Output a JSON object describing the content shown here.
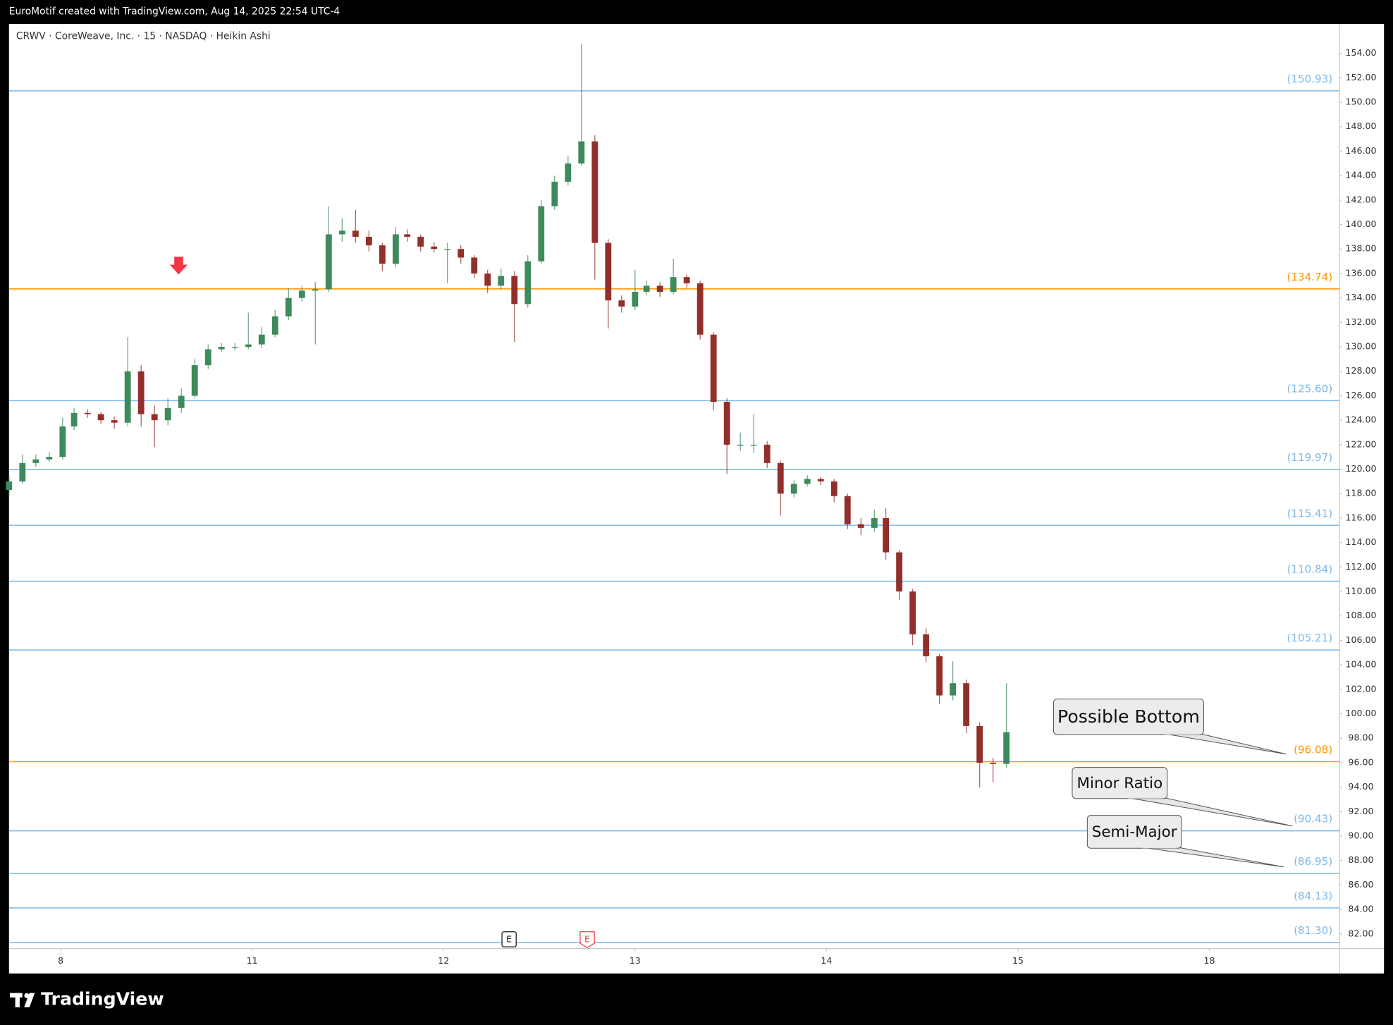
{
  "header": "EuroMotif created with TradingView.com, Aug 14, 2025 22:54 UTC-4",
  "footer_logo": "TradingView",
  "chart_data": {
    "type": "candlestick",
    "title": "CRWV · CoreWeave, Inc. · 15 · NASDAQ · Heikin Ashi",
    "up_color": "#3d8a5c",
    "down_color": "#922f2a",
    "x": [
      -0.27,
      -0.2,
      -0.13,
      -0.06,
      0.01,
      0.07,
      0.14,
      0.21,
      0.28,
      0.35,
      0.42,
      0.49,
      0.56,
      0.63,
      0.7,
      0.77,
      0.84,
      0.91,
      0.98,
      1.05,
      1.12,
      1.19,
      1.26,
      1.33,
      1.4,
      1.47,
      1.54,
      1.61,
      1.68,
      1.75,
      1.81,
      1.88,
      1.95,
      2.02,
      2.09,
      2.16,
      2.23,
      2.3,
      2.37,
      2.44,
      2.51,
      2.58,
      2.65,
      2.72,
      2.79,
      2.86,
      2.93,
      3.0,
      3.06,
      3.13,
      3.2,
      3.27,
      3.34,
      3.41,
      3.48,
      3.55,
      3.62,
      3.69,
      3.76,
      3.83,
      3.9,
      3.97,
      4.04,
      4.11,
      4.18,
      4.25,
      4.31,
      4.38,
      4.45,
      4.52,
      4.59,
      4.66,
      4.73,
      4.8,
      4.87,
      4.94
    ],
    "open": [
      118.3,
      119,
      120.5,
      120.8,
      121,
      123.5,
      124.6,
      124.5,
      124,
      123.8,
      128,
      124.5,
      124,
      125,
      126,
      128.5,
      129.8,
      130,
      130,
      130.2,
      131,
      132.5,
      134,
      134.6,
      134.7,
      139.2,
      139.5,
      139,
      138.3,
      136.8,
      139.2,
      139,
      138.2,
      138,
      138,
      137.3,
      136,
      135,
      135.8,
      133.5,
      137,
      141.5,
      143.5,
      145,
      146.8,
      138.5,
      133.8,
      133.3,
      134.5,
      135,
      134.5,
      135.7,
      135.2,
      131,
      125.5,
      122,
      122,
      122,
      120.5,
      118,
      118.8,
      119.2,
      119,
      117.8,
      115.5,
      115.2,
      116,
      113.2,
      110,
      106.5,
      104.7,
      101.5,
      102.5,
      99,
      96,
      95.9
    ],
    "high": [
      119.5,
      121.2,
      121.2,
      121.4,
      124.2,
      125,
      124.9,
      124.7,
      124.3,
      130.8,
      128.5,
      125.2,
      125.8,
      126.6,
      129,
      130.2,
      130.3,
      130.3,
      132.8,
      131.6,
      133,
      134.8,
      135,
      135.3,
      141.5,
      140.5,
      141.2,
      139.5,
      138.5,
      139.8,
      139.6,
      139.2,
      138.6,
      138.5,
      138.3,
      137.5,
      136.3,
      136.4,
      136.2,
      137.5,
      142,
      144,
      145.6,
      154.8,
      147.3,
      138.8,
      134.2,
      136.3,
      135.4,
      135.3,
      137.2,
      135.9,
      135.4,
      131.2,
      125.8,
      123,
      124.5,
      122.3,
      120.7,
      119.1,
      119.5,
      119.4,
      119.2,
      118,
      116,
      116.7,
      116.8,
      113.4,
      110.2,
      107,
      104.9,
      104.3,
      102.8,
      99.3,
      96.4,
      102.5
    ],
    "low": [
      117.8,
      118.8,
      120.2,
      120.6,
      120.8,
      123.2,
      124.2,
      123.7,
      123.3,
      123.5,
      123.5,
      121.8,
      123.6,
      124.6,
      125.8,
      128.2,
      129.6,
      129.7,
      129.8,
      129.9,
      130.8,
      132.2,
      133.7,
      130.2,
      134.5,
      138.6,
      138.5,
      137.8,
      136.2,
      136.5,
      138.6,
      137.8,
      137.7,
      135.2,
      136.8,
      135.6,
      134.4,
      134.7,
      130.4,
      133.2,
      136.8,
      141.2,
      143.2,
      144.8,
      135.5,
      131.5,
      132.8,
      133,
      134.2,
      134.1,
      134.3,
      134.8,
      130.6,
      124.8,
      119.6,
      121.5,
      121.3,
      120.1,
      116.2,
      117.7,
      118.6,
      118.7,
      117.3,
      115.1,
      114.6,
      114.9,
      112.6,
      109.3,
      105.6,
      104.2,
      100.8,
      101.1,
      98.4,
      94,
      94.4,
      95.6
    ],
    "close": [
      119,
      120.5,
      120.8,
      121,
      123.5,
      124.6,
      124.5,
      124,
      123.8,
      128,
      124.5,
      124,
      125,
      126,
      128.5,
      129.8,
      130,
      130,
      130.2,
      131,
      132.5,
      134,
      134.6,
      134.7,
      139.2,
      139.5,
      139,
      138.3,
      136.8,
      139.2,
      139,
      138.2,
      138,
      138,
      137.3,
      136,
      135,
      135.8,
      133.5,
      137,
      141.5,
      143.5,
      145,
      146.8,
      138.5,
      133.8,
      133.3,
      134.5,
      135,
      134.5,
      135.7,
      135.2,
      131,
      125.5,
      122,
      122,
      122,
      120.5,
      118,
      118.8,
      119.2,
      119,
      117.8,
      115.5,
      115.2,
      116,
      113.2,
      110,
      106.5,
      104.7,
      101.5,
      102.5,
      99,
      96,
      95.9,
      98.5
    ],
    "xlim": [
      -0.27,
      6.68
    ],
    "xticks": [
      {
        "value": 0,
        "label": "8"
      },
      {
        "value": 1,
        "label": "11"
      },
      {
        "value": 2,
        "label": "12"
      },
      {
        "value": 3,
        "label": "13"
      },
      {
        "value": 4,
        "label": "14"
      },
      {
        "value": 5,
        "label": "15"
      },
      {
        "value": 6,
        "label": "18"
      }
    ],
    "ylim": [
      80.8,
      156.4
    ],
    "yticks": [
      {
        "value": 82,
        "label": "82.00"
      },
      {
        "value": 84,
        "label": "84.00"
      },
      {
        "value": 86,
        "label": "86.00"
      },
      {
        "value": 88,
        "label": "88.00"
      },
      {
        "value": 90,
        "label": "90.00"
      },
      {
        "value": 92,
        "label": "92.00"
      },
      {
        "value": 94,
        "label": "94.00"
      },
      {
        "value": 96,
        "label": "96.00"
      },
      {
        "value": 98,
        "label": "98.00"
      },
      {
        "value": 100,
        "label": "100.00"
      },
      {
        "value": 102,
        "label": "102.00"
      },
      {
        "value": 104,
        "label": "104.00"
      },
      {
        "value": 106,
        "label": "106.00"
      },
      {
        "value": 108,
        "label": "108.00"
      },
      {
        "value": 110,
        "label": "110.00"
      },
      {
        "value": 112,
        "label": "112.00"
      },
      {
        "value": 114,
        "label": "114.00"
      },
      {
        "value": 116,
        "label": "116.00"
      },
      {
        "value": 118,
        "label": "118.00"
      },
      {
        "value": 120,
        "label": "120.00"
      },
      {
        "value": 122,
        "label": "122.00"
      },
      {
        "value": 124,
        "label": "124.00"
      },
      {
        "value": 126,
        "label": "126.00"
      },
      {
        "value": 128,
        "label": "128.00"
      },
      {
        "value": 130,
        "label": "130.00"
      },
      {
        "value": 132,
        "label": "132.00"
      },
      {
        "value": 134,
        "label": "134.00"
      },
      {
        "value": 136,
        "label": "136.00"
      },
      {
        "value": 138,
        "label": "138.00"
      },
      {
        "value": 140,
        "label": "140.00"
      },
      {
        "value": 142,
        "label": "142.00"
      },
      {
        "value": 144,
        "label": "144.00"
      },
      {
        "value": 146,
        "label": "146.00"
      },
      {
        "value": 148,
        "label": "148.00"
      },
      {
        "value": 150,
        "label": "150.00"
      },
      {
        "value": 152,
        "label": "152.00"
      },
      {
        "value": 154,
        "label": "154.00"
      }
    ],
    "levels": [
      {
        "value": 150.93,
        "label": "(150.93)",
        "color": "#7cb9ea"
      },
      {
        "value": 134.74,
        "label": "(134.74)",
        "color": "#ff9800"
      },
      {
        "value": 125.6,
        "label": "(125.60)",
        "color": "#7cb9ea"
      },
      {
        "value": 119.97,
        "label": "(119.97)",
        "color": "#7cb9ea"
      },
      {
        "value": 115.41,
        "label": "(115.41)",
        "color": "#7cb9ea"
      },
      {
        "value": 110.84,
        "label": "(110.84)",
        "color": "#7cb9ea"
      },
      {
        "value": 105.21,
        "label": "(105.21)",
        "color": "#7cb9ea"
      },
      {
        "value": 96.08,
        "label": "(96.08)",
        "color": "#ff9800"
      },
      {
        "value": 90.43,
        "label": "(90.43)",
        "color": "#7cb9ea"
      },
      {
        "value": 86.95,
        "label": "(86.95)",
        "color": "#7cb9ea"
      },
      {
        "value": 84.13,
        "label": "(84.13)",
        "color": "#7cb9ea"
      },
      {
        "value": 81.3,
        "label": "(81.30)",
        "color": "#7cb9ea"
      }
    ],
    "annotations": [
      "Possible Bottom",
      "Minor Ratio",
      "Semi-Major"
    ],
    "events": [
      "E",
      "E"
    ]
  }
}
